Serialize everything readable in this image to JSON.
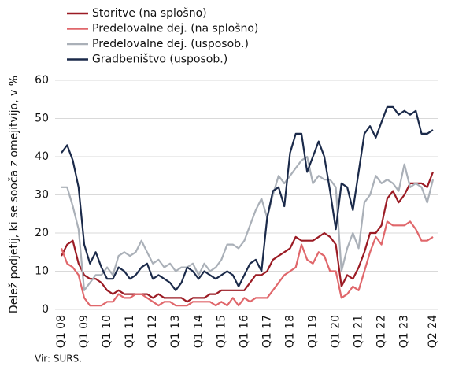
{
  "chart_data": {
    "type": "line",
    "ylabel": "Delež podjetij, ki se sooča z omejitvijo, v %",
    "source": "Vir: SURS.",
    "categories": [
      "Q1 08",
      null,
      null,
      null,
      "Q1 09",
      null,
      null,
      null,
      "Q1 10",
      null,
      null,
      null,
      "Q1 11",
      null,
      null,
      null,
      "Q1 12",
      null,
      null,
      null,
      "Q1 13",
      null,
      null,
      null,
      "Q1 14",
      null,
      null,
      null,
      "Q1 15",
      null,
      null,
      null,
      "Q1 16",
      null,
      null,
      null,
      "Q1 17",
      null,
      null,
      null,
      "Q1 18",
      null,
      null,
      null,
      "Q1 19",
      null,
      null,
      null,
      "Q1 20",
      null,
      null,
      null,
      "Q1 21",
      null,
      null,
      null,
      "Q1 22",
      null,
      null,
      null,
      "Q1 23",
      null,
      null,
      null,
      null,
      "Q2 24"
    ],
    "series": [
      {
        "name": "Storitve (na splošno)",
        "color": "#9b1b24",
        "values": [
          14,
          17,
          18,
          12,
          9,
          8,
          8,
          7,
          5,
          4,
          5,
          4,
          4,
          4,
          4,
          4,
          3,
          4,
          3,
          3,
          3,
          3,
          2,
          3,
          3,
          3,
          4,
          4,
          5,
          5,
          5,
          5,
          5,
          7,
          9,
          9,
          10,
          13,
          14,
          15,
          16,
          19,
          18,
          18,
          18,
          19,
          20,
          19,
          17,
          6,
          9,
          8,
          11,
          15,
          20,
          20,
          22,
          29,
          31,
          28,
          30,
          33,
          33,
          33,
          32,
          36
        ]
      },
      {
        "name": "Predelovalne dej. (na splošno)",
        "color": "#e0676b",
        "values": [
          16,
          12,
          11,
          9,
          3,
          1,
          1,
          1,
          2,
          2,
          4,
          3,
          3,
          4,
          4,
          3,
          2,
          1,
          2,
          2,
          1,
          1,
          1,
          2,
          2,
          2,
          2,
          1,
          2,
          1,
          3,
          1,
          3,
          2,
          3,
          3,
          3,
          5,
          7,
          9,
          10,
          11,
          17,
          13,
          12,
          15,
          14,
          10,
          10,
          3,
          4,
          6,
          5,
          10,
          15,
          19,
          17,
          23,
          22,
          22,
          22,
          23,
          21,
          18,
          18,
          19
        ]
      },
      {
        "name": "Predelovalne dej. (usposob.)",
        "color": "#aab0b8",
        "values": [
          32,
          32,
          27,
          21,
          5,
          7,
          9,
          9,
          11,
          9,
          14,
          15,
          14,
          15,
          18,
          15,
          12,
          13,
          11,
          12,
          10,
          11,
          11,
          12,
          9,
          12,
          10,
          11,
          13,
          17,
          17,
          16,
          18,
          22,
          26,
          29,
          24,
          30,
          35,
          33,
          35,
          37,
          39,
          40,
          33,
          35,
          34,
          34,
          32,
          10,
          16,
          20,
          16,
          28,
          30,
          35,
          33,
          34,
          33,
          31,
          38,
          32,
          33,
          32,
          28,
          34
        ]
      },
      {
        "name": "Gradbeništvo (usposob.)",
        "color": "#1b2a4a",
        "values": [
          41,
          43,
          39,
          32,
          17,
          12,
          15,
          11,
          8,
          8,
          11,
          10,
          8,
          9,
          11,
          12,
          8,
          9,
          8,
          7,
          5,
          7,
          11,
          10,
          8,
          10,
          9,
          8,
          9,
          10,
          9,
          6,
          9,
          12,
          13,
          10,
          24,
          31,
          32,
          27,
          41,
          46,
          46,
          36,
          40,
          44,
          40,
          31,
          21,
          33,
          32,
          26,
          36,
          46,
          48,
          45,
          49,
          53,
          53,
          51,
          52,
          51,
          52,
          46,
          46,
          47
        ]
      }
    ],
    "ylim": [
      0,
      60
    ],
    "yticks": [
      0,
      10,
      20,
      30,
      40,
      50,
      60
    ],
    "grid": true
  }
}
